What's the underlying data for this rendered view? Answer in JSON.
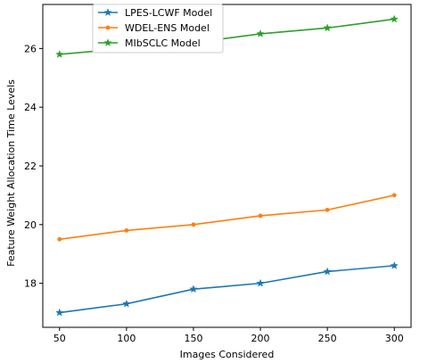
{
  "chart_data": {
    "type": "line",
    "xlabel": "Images Considered",
    "ylabel": "Feature Weight Allocation Time Levels",
    "x": [
      50,
      100,
      150,
      200,
      250,
      300
    ],
    "xticks": [
      50,
      100,
      150,
      200,
      250,
      300
    ],
    "yticks": [
      18,
      20,
      22,
      24,
      26
    ],
    "xlim": [
      37.5,
      312.5
    ],
    "ylim": [
      16.5,
      27.5
    ],
    "grid": false,
    "legend_position": "top-left",
    "series": [
      {
        "name": "LPES-LCWF Model",
        "color": "#1f77b4",
        "marker": "star",
        "values": [
          17.0,
          17.3,
          17.8,
          18.0,
          18.4,
          18.6
        ]
      },
      {
        "name": "WDEL-ENS Model",
        "color": "#ff7f0e",
        "marker": "dot",
        "values": [
          19.5,
          19.8,
          20.0,
          20.3,
          20.5,
          21.0
        ]
      },
      {
        "name": "MIbSCLC Model",
        "color": "#2ca02c",
        "marker": "star",
        "values": [
          25.8,
          26.0,
          26.2,
          26.5,
          26.7,
          27.0
        ]
      }
    ]
  }
}
